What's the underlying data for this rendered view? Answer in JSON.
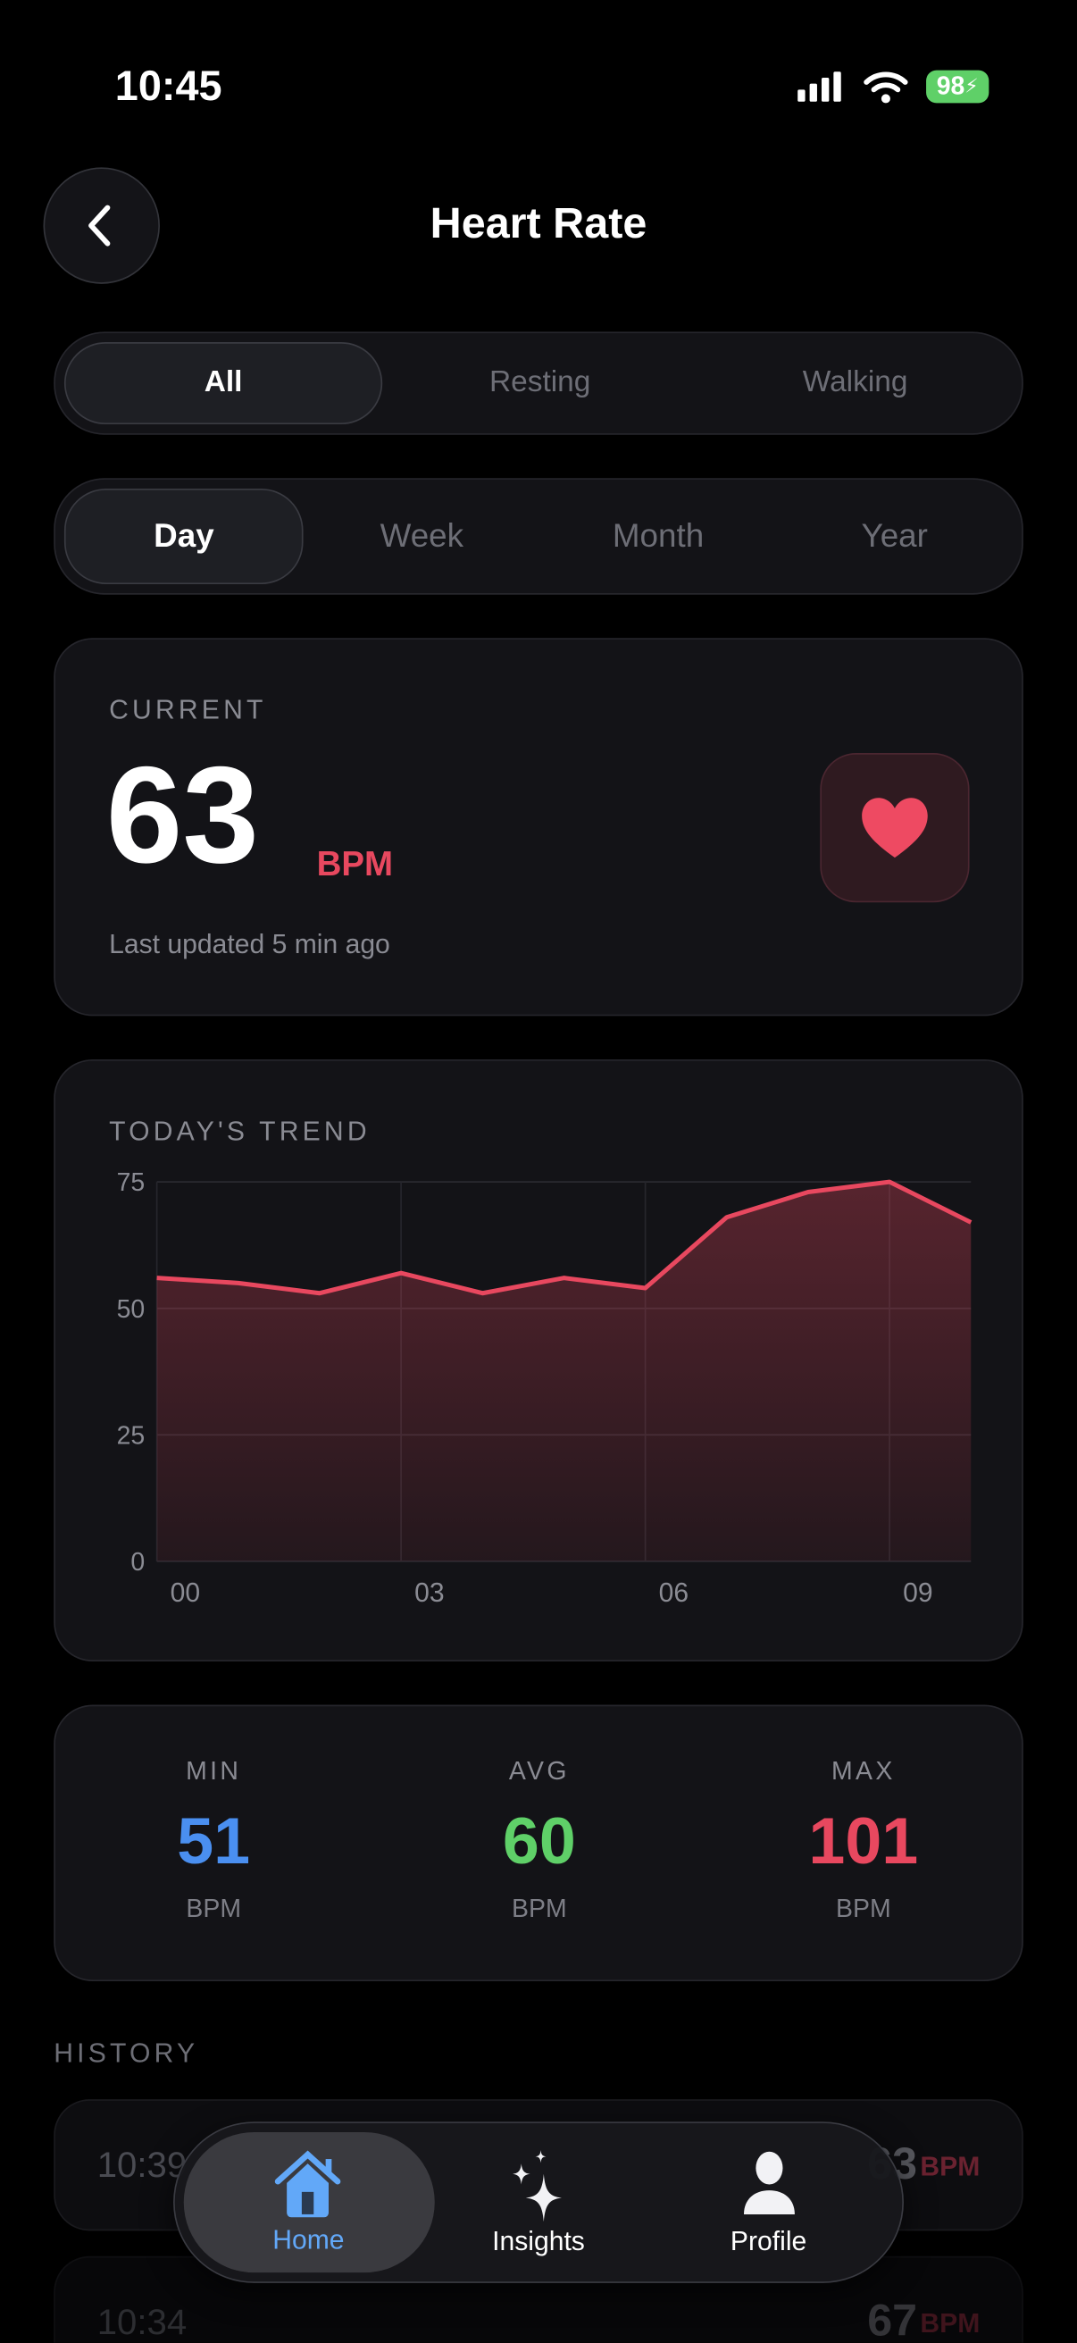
{
  "status_bar": {
    "time": "10:45",
    "battery": "98"
  },
  "header": {
    "title": "Heart Rate"
  },
  "type_tabs": [
    {
      "label": "All",
      "active": true
    },
    {
      "label": "Resting",
      "active": false
    },
    {
      "label": "Walking",
      "active": false
    }
  ],
  "range_tabs": [
    {
      "label": "Day",
      "active": true
    },
    {
      "label": "Week",
      "active": false
    },
    {
      "label": "Month",
      "active": false
    },
    {
      "label": "Year",
      "active": false
    }
  ],
  "current": {
    "label": "CURRENT",
    "value": "63",
    "unit": "BPM",
    "updated": "Last updated 5 min ago",
    "icon": "heart-icon"
  },
  "chart_data": {
    "type": "area",
    "title": "TODAY'S TREND",
    "x": [
      0,
      1,
      2,
      3,
      4,
      5,
      6,
      7,
      8,
      9,
      10
    ],
    "xticks": [
      "00",
      "03",
      "06",
      "09"
    ],
    "yticks": [
      "75",
      "50",
      "25",
      "0"
    ],
    "ylim": [
      0,
      75
    ],
    "values": [
      56,
      55,
      53,
      57,
      53,
      56,
      54,
      68,
      73,
      75,
      67
    ],
    "grid": true,
    "color": "#e8485f"
  },
  "stats": [
    {
      "label": "MIN",
      "value": "51",
      "unit": "BPM",
      "color": "#4a8ff0"
    },
    {
      "label": "AVG",
      "value": "60",
      "unit": "BPM",
      "color": "#5fd068"
    },
    {
      "label": "MAX",
      "value": "101",
      "unit": "BPM",
      "color": "#e8485f"
    }
  ],
  "history": {
    "label": "HISTORY",
    "items": [
      {
        "time": "10:39",
        "value": "63",
        "unit": "BPM"
      },
      {
        "time": "10:34",
        "value": "67",
        "unit": "BPM"
      }
    ]
  },
  "tab_bar": [
    {
      "label": "Home",
      "icon": "house-icon",
      "active": true
    },
    {
      "label": "Insights",
      "icon": "sparkles-icon",
      "active": false
    },
    {
      "label": "Profile",
      "icon": "person-icon",
      "active": false
    }
  ]
}
